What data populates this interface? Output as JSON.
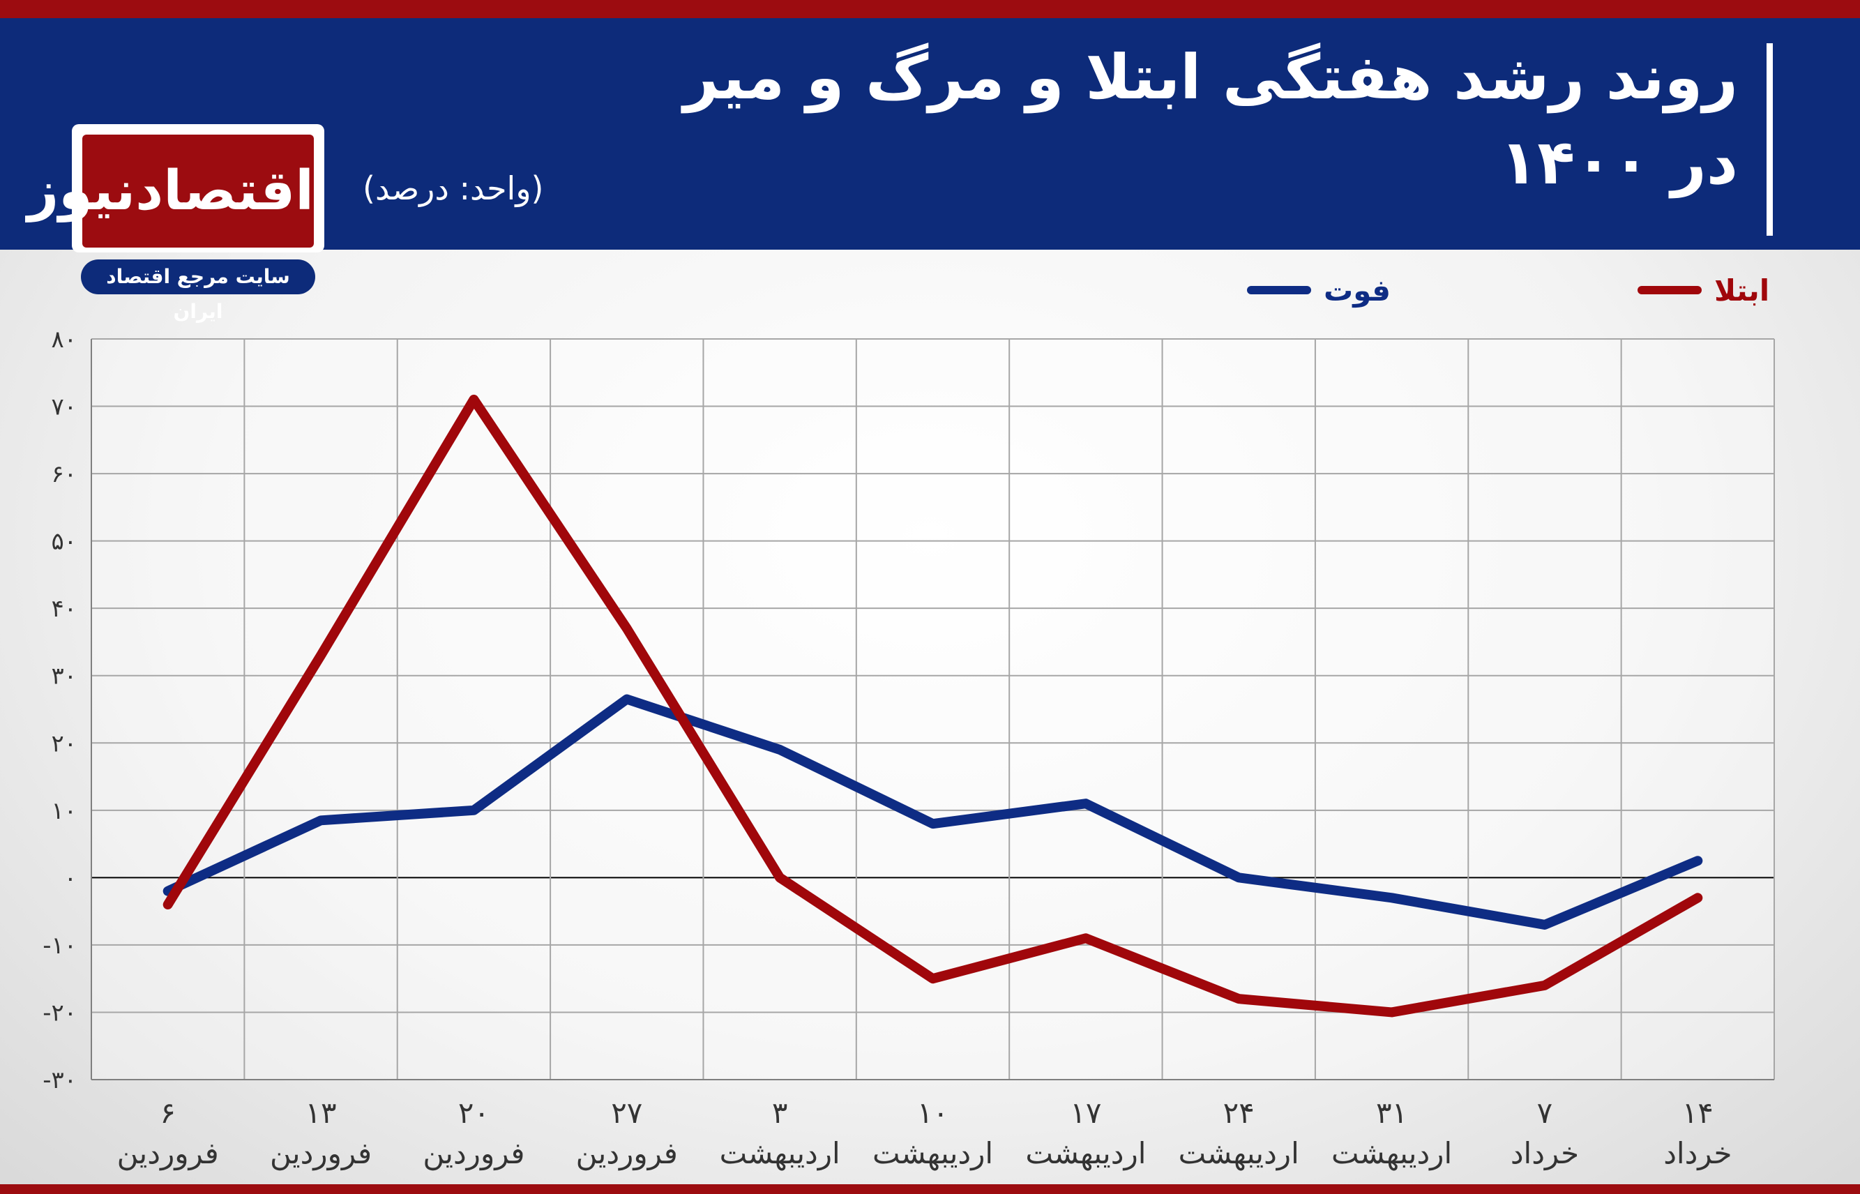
{
  "header": {
    "title_line1": "روند رشد هفتگی ابتلا و مرگ و میر",
    "title_line2": "در ۱۴۰۰",
    "unit": "(واحد: درصد)"
  },
  "logo": {
    "name": "اقتصادنیوز",
    "tagline": "سایت مرجع اقتصاد ایران"
  },
  "colors": {
    "header_bg": "#0d2b7a",
    "accent_red": "#9c0c10",
    "series_infection": "#a0070b",
    "series_death": "#0e2c84"
  },
  "chart_data": {
    "type": "line",
    "title": "روند رشد هفتگی ابتلا و مرگ و میر در ۱۴۰۰",
    "ylabel": "",
    "xlabel": "",
    "ylim": [
      -30,
      80
    ],
    "yticks": [
      80,
      70,
      60,
      50,
      40,
      30,
      20,
      10,
      0,
      -10,
      -20,
      -30
    ],
    "ytick_labels": [
      "۸۰",
      "۷۰",
      "۶۰",
      "۵۰",
      "۴۰",
      "۳۰",
      "۲۰",
      "۱۰",
      "۰",
      "-۱۰",
      "-۲۰",
      "-۳۰"
    ],
    "grid": true,
    "legend_position": "top-right",
    "categories": [
      {
        "day": "۶",
        "month": "فروردین"
      },
      {
        "day": "۱۳",
        "month": "فروردین"
      },
      {
        "day": "۲۰",
        "month": "فروردین"
      },
      {
        "day": "۲۷",
        "month": "فروردین"
      },
      {
        "day": "۳",
        "month": "اردیبهشت"
      },
      {
        "day": "۱۰",
        "month": "اردیبهشت"
      },
      {
        "day": "۱۷",
        "month": "اردیبهشت"
      },
      {
        "day": "۲۴",
        "month": "اردیبهشت"
      },
      {
        "day": "۳۱",
        "month": "اردیبهشت"
      },
      {
        "day": "۷",
        "month": "خرداد"
      },
      {
        "day": "۱۴",
        "month": "خرداد"
      }
    ],
    "series": [
      {
        "name": "ابتلا",
        "color": "#a0070b",
        "values": [
          -4,
          33,
          71,
          37,
          0,
          -15,
          -9,
          -18,
          -20,
          -16,
          -3
        ]
      },
      {
        "name": "فوت",
        "color": "#0e2c84",
        "values": [
          -2,
          8.5,
          10,
          26.5,
          19,
          8,
          11,
          0,
          -3,
          -7,
          2.5
        ]
      }
    ]
  }
}
